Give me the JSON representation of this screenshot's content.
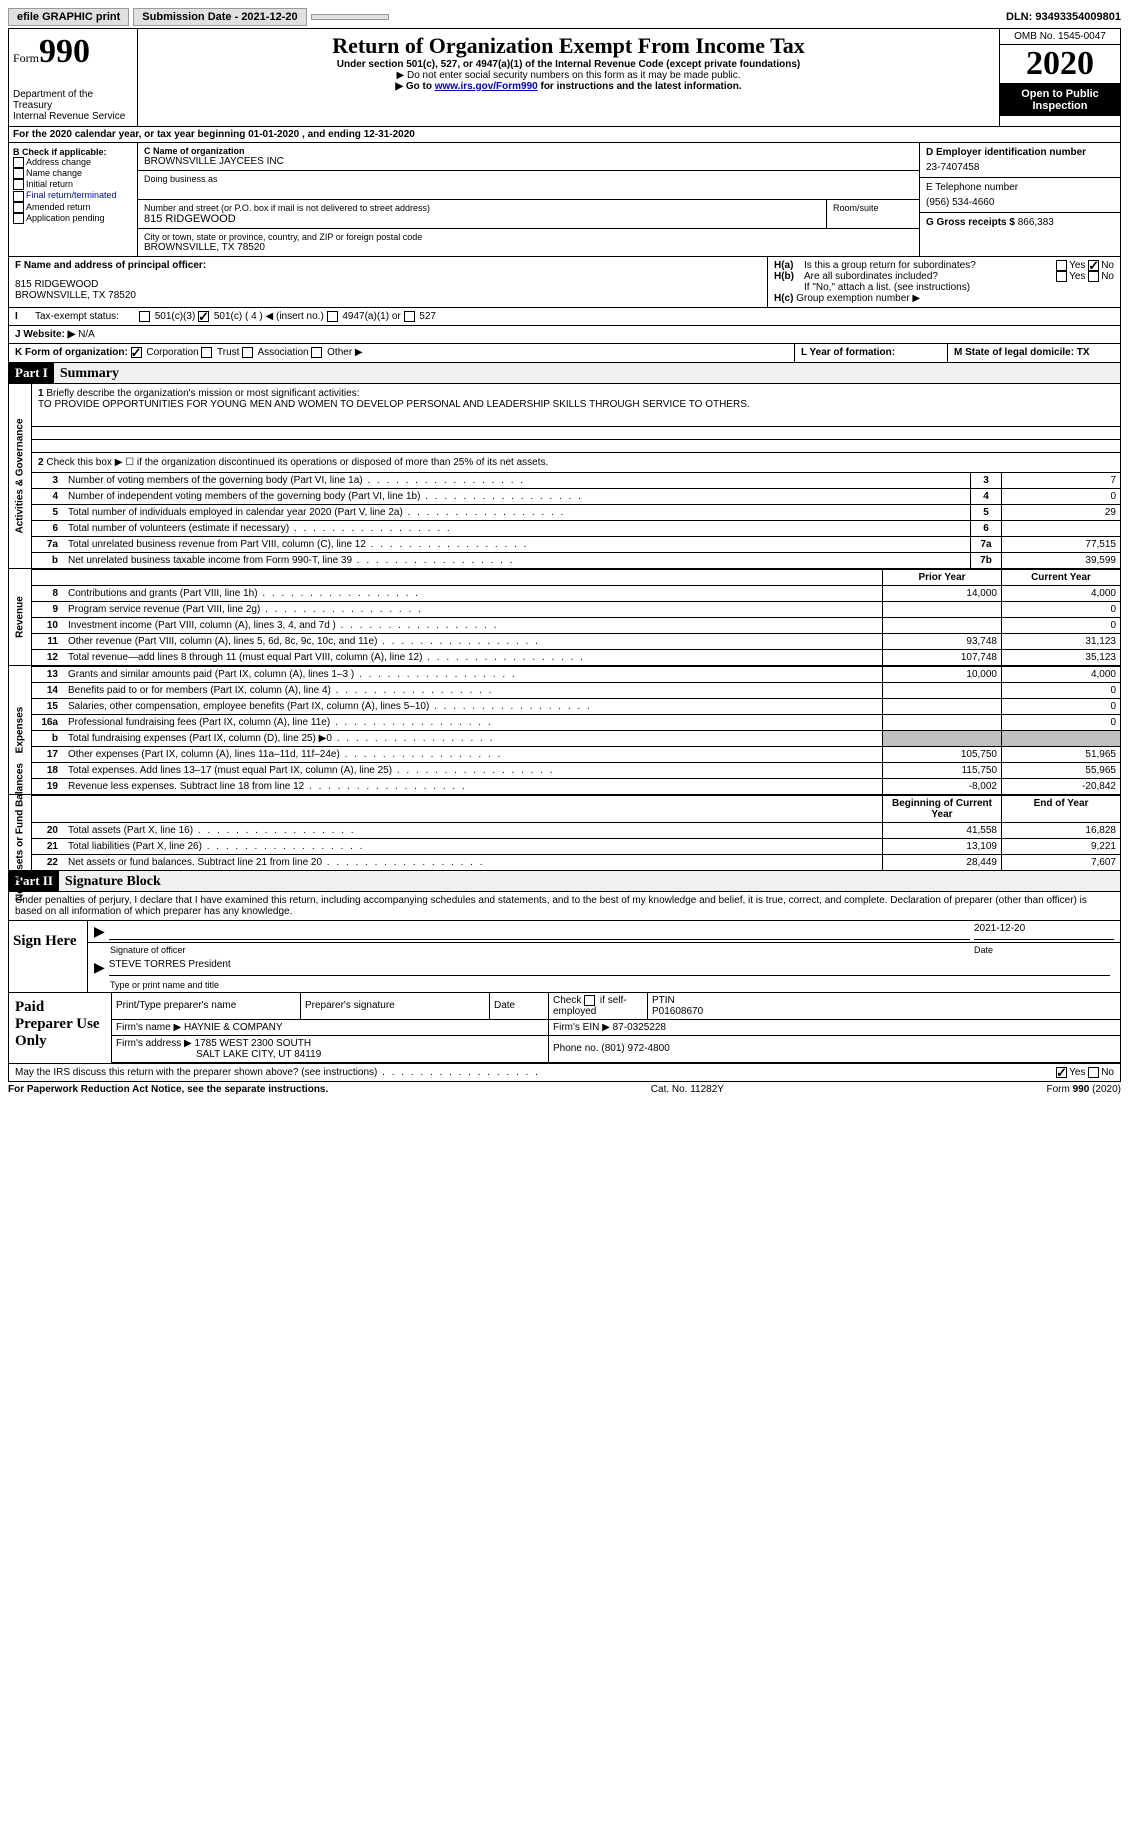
{
  "topbar": {
    "efile": "efile GRAPHIC print",
    "sub_label": "Submission Date - 2021-12-20",
    "dln": "DLN: 93493354009801"
  },
  "header": {
    "form_word": "Form",
    "form_num": "990",
    "dept1": "Department of the Treasury",
    "dept2": "Internal Revenue Service",
    "title": "Return of Organization Exempt From Income Tax",
    "sub1": "Under section 501(c), 527, or 4947(a)(1) of the Internal Revenue Code (except private foundations)",
    "sub2": "▶ Do not enter social security numbers on this form as it may be made public.",
    "sub3_pre": "▶ Go to ",
    "sub3_link": "www.irs.gov/Form990",
    "sub3_post": " for instructions and the latest information.",
    "omb": "OMB No. 1545-0047",
    "year": "2020",
    "open1": "Open to Public",
    "open2": "Inspection"
  },
  "A": "For the 2020 calendar year, or tax year beginning 01-01-2020    , and ending 12-31-2020",
  "B": {
    "title": "B Check if applicable:",
    "items": [
      "Address change",
      "Name change",
      "Initial return",
      "Final return/terminated",
      "Amended return",
      "Application pending"
    ]
  },
  "C": {
    "name_lbl": "C Name of organization",
    "name": "BROWNSVILLE JAYCEES INC",
    "dba_lbl": "Doing business as",
    "addr_lbl": "Number and street (or P.O. box if mail is not delivered to street address)",
    "room_lbl": "Room/suite",
    "addr": "815 RIDGEWOOD",
    "city_lbl": "City or town, state or province, country, and ZIP or foreign postal code",
    "city": "BROWNSVILLE, TX  78520"
  },
  "D": {
    "lbl": "D Employer identification number",
    "val": "23-7407458"
  },
  "E": {
    "lbl": "E Telephone number",
    "val": "(956) 534-4660"
  },
  "G": {
    "lbl": "G Gross receipts $",
    "val": "866,383"
  },
  "F": {
    "lbl": "F  Name and address of principal officer:",
    "l1": "815 RIDGEWOOD",
    "l2": "BROWNSVILLE, TX  78520"
  },
  "H": {
    "a": "Is this a group return for subordinates?",
    "b": "Are all subordinates included?",
    "b2": "If \"No,\" attach a list. (see instructions)",
    "c": "Group exemption number ▶"
  },
  "I": {
    "lbl": "Tax-exempt status:",
    "o1": "501(c)(3)",
    "o2": "501(c) ( 4 ) ◀ (insert no.)",
    "o3": "4947(a)(1) or",
    "o4": "527"
  },
  "J": {
    "lbl": "Website: ▶",
    "val": "N/A"
  },
  "K": {
    "lbl": "K Form of organization:",
    "o1": "Corporation",
    "o2": "Trust",
    "o3": "Association",
    "o4": "Other ▶"
  },
  "L": {
    "lbl": "L Year of formation:"
  },
  "M": {
    "lbl": "M State of legal domicile: TX"
  },
  "part1": {
    "num": "Part I",
    "title": "Summary"
  },
  "gov": {
    "vlabel": "Activities & Governance",
    "l1": "Briefly describe the organization's mission or most significant activities:",
    "mission": "TO PROVIDE OPPORTUNITIES FOR YOUNG MEN AND WOMEN TO DEVELOP PERSONAL AND LEADERSHIP SKILLS THROUGH SERVICE TO OTHERS.",
    "l2": "Check this box ▶ ☐  if the organization discontinued its operations or disposed of more than 25% of its net assets.",
    "rows": [
      {
        "n": "3",
        "t": "Number of voting members of the governing body (Part VI, line 1a)",
        "ln": "3",
        "v": "7"
      },
      {
        "n": "4",
        "t": "Number of independent voting members of the governing body (Part VI, line 1b)",
        "ln": "4",
        "v": "0"
      },
      {
        "n": "5",
        "t": "Total number of individuals employed in calendar year 2020 (Part V, line 2a)",
        "ln": "5",
        "v": "29"
      },
      {
        "n": "6",
        "t": "Total number of volunteers (estimate if necessary)",
        "ln": "6",
        "v": ""
      },
      {
        "n": "7a",
        "t": "Total unrelated business revenue from Part VIII, column (C), line 12",
        "ln": "7a",
        "v": "77,515"
      },
      {
        "n": "b",
        "t": "Net unrelated business taxable income from Form 990-T, line 39",
        "ln": "7b",
        "v": "39,599"
      }
    ]
  },
  "col_hdr": {
    "py": "Prior Year",
    "cy": "Current Year",
    "by": "Beginning of Current Year",
    "ey": "End of Year"
  },
  "rev": {
    "vlabel": "Revenue",
    "rows": [
      {
        "n": "8",
        "t": "Contributions and grants (Part VIII, line 1h)",
        "py": "14,000",
        "cy": "4,000"
      },
      {
        "n": "9",
        "t": "Program service revenue (Part VIII, line 2g)",
        "py": "",
        "cy": "0"
      },
      {
        "n": "10",
        "t": "Investment income (Part VIII, column (A), lines 3, 4, and 7d )",
        "py": "",
        "cy": "0"
      },
      {
        "n": "11",
        "t": "Other revenue (Part VIII, column (A), lines 5, 6d, 8c, 9c, 10c, and 11e)",
        "py": "93,748",
        "cy": "31,123"
      },
      {
        "n": "12",
        "t": "Total revenue—add lines 8 through 11 (must equal Part VIII, column (A), line 12)",
        "py": "107,748",
        "cy": "35,123"
      }
    ]
  },
  "exp": {
    "vlabel": "Expenses",
    "rows": [
      {
        "n": "13",
        "t": "Grants and similar amounts paid (Part IX, column (A), lines 1–3 )",
        "py": "10,000",
        "cy": "4,000"
      },
      {
        "n": "14",
        "t": "Benefits paid to or for members (Part IX, column (A), line 4)",
        "py": "",
        "cy": "0"
      },
      {
        "n": "15",
        "t": "Salaries, other compensation, employee benefits (Part IX, column (A), lines 5–10)",
        "py": "",
        "cy": "0"
      },
      {
        "n": "16a",
        "t": "Professional fundraising fees (Part IX, column (A), line 11e)",
        "py": "",
        "cy": "0"
      },
      {
        "n": "b",
        "t": "Total fundraising expenses (Part IX, column (D), line 25) ▶0",
        "py": "shade",
        "cy": "shade"
      },
      {
        "n": "17",
        "t": "Other expenses (Part IX, column (A), lines 11a–11d, 11f–24e)",
        "py": "105,750",
        "cy": "51,965"
      },
      {
        "n": "18",
        "t": "Total expenses. Add lines 13–17 (must equal Part IX, column (A), line 25)",
        "py": "115,750",
        "cy": "55,965"
      },
      {
        "n": "19",
        "t": "Revenue less expenses. Subtract line 18 from line 12",
        "py": "-8,002",
        "cy": "-20,842"
      }
    ]
  },
  "net": {
    "vlabel": "Net Assets or Fund Balances",
    "rows": [
      {
        "n": "20",
        "t": "Total assets (Part X, line 16)",
        "py": "41,558",
        "cy": "16,828"
      },
      {
        "n": "21",
        "t": "Total liabilities (Part X, line 26)",
        "py": "13,109",
        "cy": "9,221"
      },
      {
        "n": "22",
        "t": "Net assets or fund balances. Subtract line 21 from line 20",
        "py": "28,449",
        "cy": "7,607"
      }
    ]
  },
  "part2": {
    "num": "Part II",
    "title": "Signature Block"
  },
  "penalties": "Under penalties of perjury, I declare that I have examined this return, including accompanying schedules and statements, and to the best of my knowledge and belief, it is true, correct, and complete. Declaration of preparer (other than officer) is based on all information of which preparer has any knowledge.",
  "sign": {
    "here": "Sign Here",
    "sig_lbl": "Signature of officer",
    "date": "2021-12-20",
    "date_lbl": "Date",
    "name": "STEVE TORRES  President",
    "name_lbl": "Type or print name and title"
  },
  "prep": {
    "title": "Paid Preparer Use Only",
    "h1": "Print/Type preparer's name",
    "h2": "Preparer's signature",
    "h3": "Date",
    "h4a": "Check",
    "h4b": "if self-employed",
    "h5": "PTIN",
    "ptin": "P01608670",
    "firm_lbl": "Firm's name   ▶",
    "firm": "HAYNIE & COMPANY",
    "ein_lbl": "Firm's EIN ▶",
    "ein": "87-0325228",
    "addr_lbl": "Firm's address ▶",
    "addr1": "1785 WEST 2300 SOUTH",
    "addr2": "SALT LAKE CITY, UT  84119",
    "ph_lbl": "Phone no.",
    "ph": "(801) 972-4800"
  },
  "discuss": "May the IRS discuss this return with the preparer shown above? (see instructions)",
  "foot": {
    "l": "For Paperwork Reduction Act Notice, see the separate instructions.",
    "c": "Cat. No. 11282Y",
    "r": "Form 990 (2020)"
  }
}
